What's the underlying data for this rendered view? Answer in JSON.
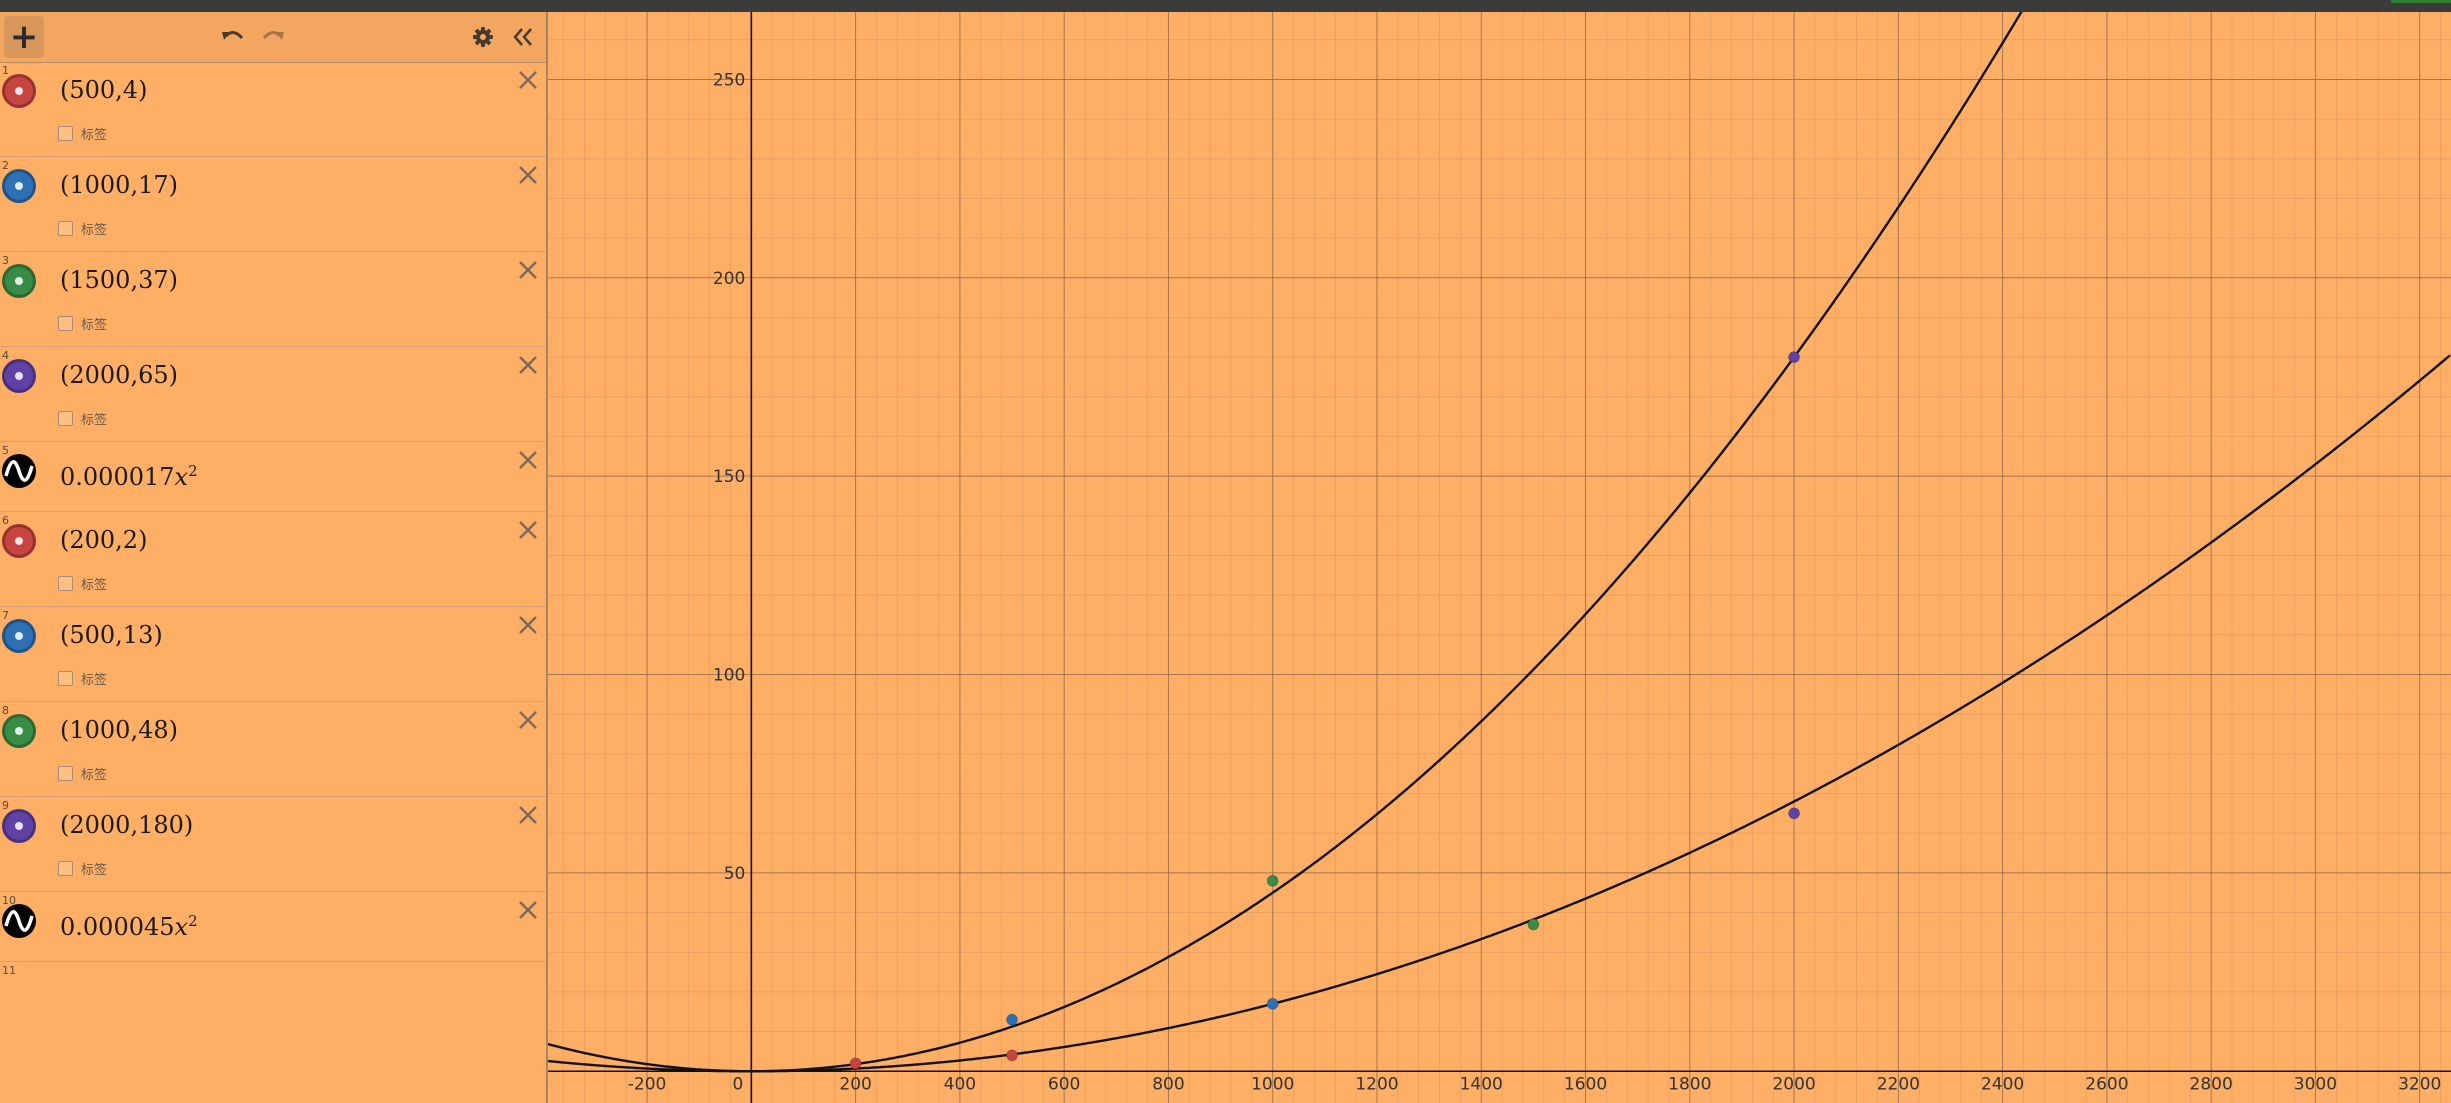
{
  "toolbar": {
    "add_icon": "plus-icon",
    "add_label": "+",
    "undo_icon": "undo-icon",
    "redo_icon": "redo-icon",
    "settings_icon": "gear-icon",
    "collapse_icon": "double-chevron-left-icon"
  },
  "expressions": [
    {
      "index": "1",
      "type": "point",
      "color": "#c74440",
      "text": "(500,4)",
      "x": 500,
      "y": 4,
      "label": "标签"
    },
    {
      "index": "2",
      "type": "point",
      "color": "#2d70b3",
      "text": "(1000,17)",
      "x": 1000,
      "y": 17,
      "label": "标签"
    },
    {
      "index": "3",
      "type": "point",
      "color": "#388c46",
      "text": "(1500,37)",
      "x": 1500,
      "y": 37,
      "label": "标签"
    },
    {
      "index": "4",
      "type": "point",
      "color": "#6042a6",
      "text": "(2000,65)",
      "x": 2000,
      "y": 65,
      "label": "标签"
    },
    {
      "index": "5",
      "type": "function",
      "coef_text": "0.000017",
      "var": "x",
      "exp": "2",
      "coef": 1.7e-05
    },
    {
      "index": "6",
      "type": "point",
      "color": "#c74440",
      "text": "(200,2)",
      "x": 200,
      "y": 2,
      "label": "标签"
    },
    {
      "index": "7",
      "type": "point",
      "color": "#2d70b3",
      "text": "(500,13)",
      "x": 500,
      "y": 13,
      "label": "标签"
    },
    {
      "index": "8",
      "type": "point",
      "color": "#388c46",
      "text": "(1000,48)",
      "x": 1000,
      "y": 48,
      "label": "标签"
    },
    {
      "index": "9",
      "type": "point",
      "color": "#6042a6",
      "text": "(2000,180)",
      "x": 2000,
      "y": 180,
      "label": "标签"
    },
    {
      "index": "10",
      "type": "function",
      "coef_text": "0.000045",
      "var": "x",
      "exp": "2",
      "coef": 4.5e-05
    },
    {
      "index": "11",
      "type": "empty"
    }
  ],
  "graph": {
    "background": "#ffaf65",
    "x_ticks": [
      "-200",
      "0",
      "200",
      "400",
      "600",
      "800",
      "1000",
      "1200",
      "1400",
      "1600",
      "1800",
      "2000",
      "2200",
      "2400",
      "2600",
      "2800",
      "3000",
      "3200"
    ],
    "y_ticks": [
      "50",
      "100",
      "150",
      "200",
      "250"
    ],
    "x_range": [
      -390,
      3260
    ],
    "y_range": [
      -8,
      267
    ]
  }
}
